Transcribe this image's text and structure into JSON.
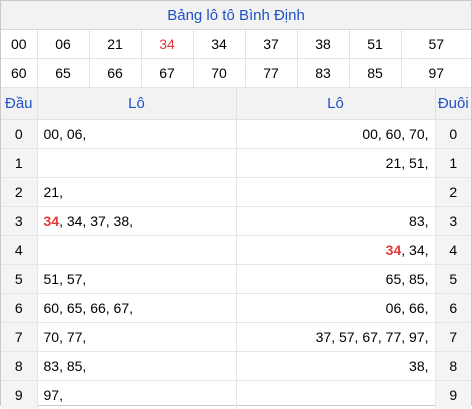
{
  "title": "Bảng lô tô Bình Định",
  "numbers": [
    "00",
    "06",
    "21",
    "34",
    "34",
    "37",
    "38",
    "51",
    "57",
    "60",
    "65",
    "66",
    "67",
    "70",
    "77",
    "83",
    "85",
    "97"
  ],
  "highlight_color": "#e13a3a",
  "accent_color": "#1f51c8",
  "headers": {
    "dau": "Đầu",
    "lo_left": "Lô",
    "lo_right": "Lô",
    "duoi": "Đuôi"
  },
  "rows": [
    {
      "dau": "0",
      "left": "00, 06,",
      "right": "00, 60, 70,",
      "duoi": "0"
    },
    {
      "dau": "1",
      "left": "",
      "right": "21, 51,",
      "duoi": "1"
    },
    {
      "dau": "2",
      "left": "21,",
      "right": "",
      "duoi": "2"
    },
    {
      "dau": "3",
      "left_hit": "34",
      "left": ", 34, 37, 38,",
      "right": "83,",
      "duoi": "3"
    },
    {
      "dau": "4",
      "left": "",
      "right_hit": "34",
      "right": ", 34,",
      "duoi": "4"
    },
    {
      "dau": "5",
      "left": "51, 57,",
      "right": "65, 85,",
      "duoi": "5"
    },
    {
      "dau": "6",
      "left": "60, 65, 66, 67,",
      "right": "06, 66,",
      "duoi": "6"
    },
    {
      "dau": "7",
      "left": "70, 77,",
      "right": "37, 57, 67, 77, 97,",
      "duoi": "7"
    },
    {
      "dau": "8",
      "left": "83, 85,",
      "right": "38,",
      "duoi": "8"
    },
    {
      "dau": "9",
      "left": "97,",
      "right": "",
      "duoi": "9"
    }
  ]
}
